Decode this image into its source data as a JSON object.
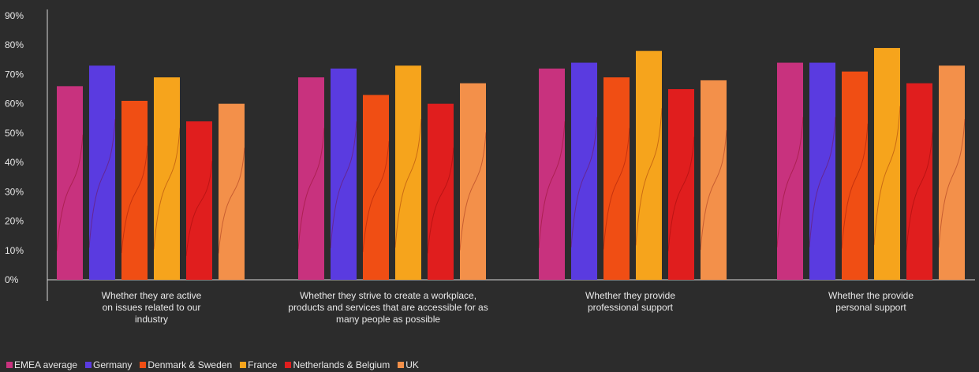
{
  "chart_data": {
    "type": "bar",
    "categories": [
      "Whether they are active on issues related to our industry",
      "Whether they strive to create a workplace, products and services that are accessible for as many people as possible",
      "Whether they provide professional support",
      "Whether the provide personal support"
    ],
    "category_lines": [
      [
        "Whether they are active",
        "on issues related to our",
        "industry"
      ],
      [
        "Whether they strive to create a workplace,",
        "products and services that are accessible for as",
        "many people as possible"
      ],
      [
        "Whether they provide",
        "professional support"
      ],
      [
        "Whether the provide",
        "personal support"
      ]
    ],
    "series": [
      {
        "name": "EMEA average",
        "color": "#c8327e",
        "values": [
          66,
          69,
          72,
          74
        ]
      },
      {
        "name": "Germany",
        "color": "#5a3be0",
        "values": [
          73,
          72,
          74,
          74
        ]
      },
      {
        "name": "Denmark & Sweden",
        "color": "#f04e14",
        "values": [
          61,
          63,
          69,
          71
        ]
      },
      {
        "name": "France",
        "color": "#f6a41c",
        "values": [
          69,
          73,
          78,
          79
        ]
      },
      {
        "name": "Netherlands & Belgium",
        "color": "#e01e1e",
        "values": [
          54,
          60,
          65,
          67
        ]
      },
      {
        "name": "UK",
        "color": "#f3904a",
        "values": [
          60,
          67,
          68,
          73
        ]
      }
    ],
    "yticks": [
      "0%",
      "10%",
      "20%",
      "30%",
      "40%",
      "50%",
      "60%",
      "70%",
      "80%",
      "90%"
    ],
    "ylim": [
      0,
      90
    ],
    "legend_position": "bottom-left",
    "grid": false
  }
}
